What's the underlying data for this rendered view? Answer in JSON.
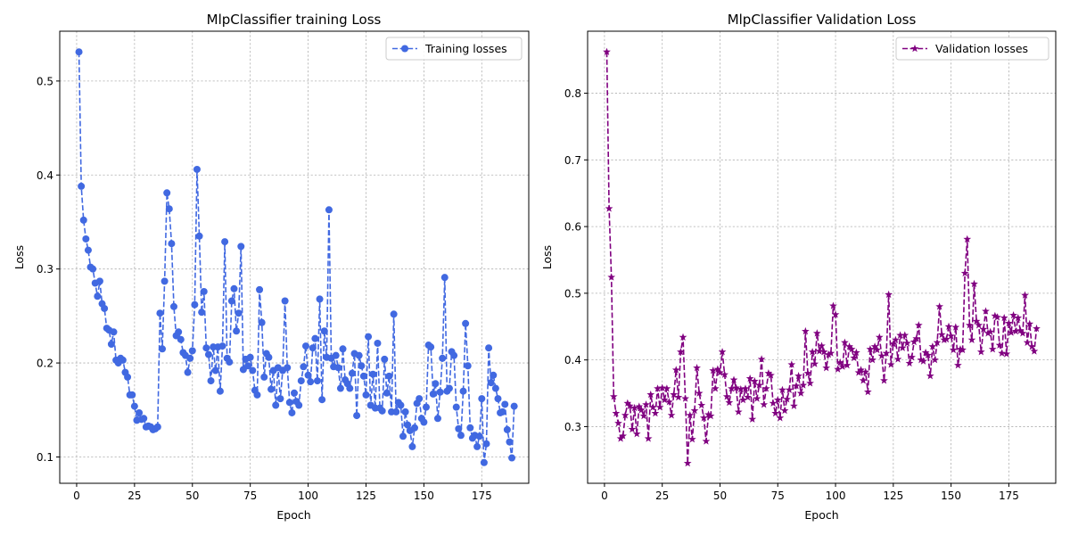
{
  "chart_data": [
    {
      "type": "line",
      "title": "MlpClassifier training Loss",
      "xlabel": "Epoch",
      "ylabel": "Loss",
      "xlim": [
        -7.3,
        195.3
      ],
      "ylim": [
        0.072,
        0.553
      ],
      "xticks": [
        0,
        25,
        50,
        75,
        100,
        125,
        150,
        175
      ],
      "yticks": [
        0.1,
        0.2,
        0.3,
        0.4,
        0.5
      ],
      "xtick_labels": [
        "0",
        "25",
        "50",
        "75",
        "100",
        "125",
        "150",
        "175"
      ],
      "ytick_labels": [
        "0.1",
        "0.2",
        "0.3",
        "0.4",
        "0.5"
      ],
      "grid": true,
      "legend_position": "top-right",
      "series": [
        {
          "name": "Training losses",
          "color": "#4169e1",
          "linestyle": "dashed",
          "marker": "circle",
          "x_start": 1,
          "values": [
            0.531,
            0.388,
            0.352,
            0.332,
            0.32,
            0.302,
            0.3,
            0.285,
            0.271,
            0.287,
            0.263,
            0.258,
            0.237,
            0.235,
            0.22,
            0.233,
            0.203,
            0.2,
            0.205,
            0.203,
            0.19,
            0.185,
            0.166,
            0.166,
            0.154,
            0.139,
            0.147,
            0.14,
            0.141,
            0.132,
            0.133,
            0.132,
            0.129,
            0.13,
            0.132,
            0.253,
            0.215,
            0.287,
            0.381,
            0.364,
            0.327,
            0.26,
            0.229,
            0.233,
            0.225,
            0.211,
            0.208,
            0.19,
            0.205,
            0.213,
            0.262,
            0.406,
            0.335,
            0.254,
            0.276,
            0.216,
            0.209,
            0.181,
            0.217,
            0.192,
            0.217,
            0.17,
            0.218,
            0.329,
            0.205,
            0.201,
            0.266,
            0.279,
            0.234,
            0.253,
            0.324,
            0.193,
            0.204,
            0.197,
            0.206,
            0.192,
            0.171,
            0.166,
            0.278,
            0.243,
            0.185,
            0.21,
            0.206,
            0.172,
            0.192,
            0.155,
            0.195,
            0.162,
            0.192,
            0.266,
            0.195,
            0.158,
            0.147,
            0.168,
            0.159,
            0.155,
            0.181,
            0.196,
            0.218,
            0.187,
            0.18,
            0.216,
            0.226,
            0.181,
            0.268,
            0.161,
            0.234,
            0.206,
            0.363,
            0.205,
            0.196,
            0.208,
            0.195,
            0.173,
            0.215,
            0.182,
            0.178,
            0.173,
            0.189,
            0.21,
            0.144,
            0.208,
            0.197,
            0.186,
            0.166,
            0.228,
            0.155,
            0.188,
            0.152,
            0.221,
            0.152,
            0.149,
            0.204,
            0.168,
            0.186,
            0.148,
            0.252,
            0.148,
            0.158,
            0.155,
            0.122,
            0.148,
            0.134,
            0.128,
            0.111,
            0.131,
            0.157,
            0.162,
            0.141,
            0.137,
            0.153,
            0.219,
            0.217,
            0.167,
            0.178,
            0.141,
            0.169,
            0.205,
            0.291,
            0.17,
            0.173,
            0.212,
            0.208,
            0.153,
            0.13,
            0.123,
            0.17,
            0.242,
            0.197,
            0.131,
            0.12,
            0.123,
            0.111,
            0.122,
            0.162,
            0.094,
            0.114,
            0.216,
            0.179,
            0.187,
            0.173,
            0.162,
            0.147,
            0.148,
            0.156,
            0.129,
            0.116,
            0.099,
            0.154
          ]
        }
      ]
    },
    {
      "type": "line",
      "title": "MlpClassifier Validation Loss",
      "xlabel": "Epoch",
      "ylabel": "Loss",
      "xlim": [
        -7.3,
        195.3
      ],
      "ylim": [
        0.215,
        0.893
      ],
      "xticks": [
        0,
        25,
        50,
        75,
        100,
        125,
        150,
        175
      ],
      "yticks": [
        0.3,
        0.4,
        0.5,
        0.6,
        0.7,
        0.8
      ],
      "xtick_labels": [
        "0",
        "25",
        "50",
        "75",
        "100",
        "125",
        "150",
        "175"
      ],
      "ytick_labels": [
        "0.3",
        "0.4",
        "0.5",
        "0.6",
        "0.7",
        "0.8"
      ],
      "grid": true,
      "legend_position": "top-right",
      "series": [
        {
          "name": "Validation losses",
          "color": "#800080",
          "linestyle": "dashed",
          "marker": "star",
          "x_start": 1,
          "values": [
            0.862,
            0.627,
            0.524,
            0.345,
            0.32,
            0.305,
            0.282,
            0.286,
            0.317,
            0.335,
            0.331,
            0.296,
            0.328,
            0.289,
            0.33,
            0.325,
            0.316,
            0.333,
            0.282,
            0.348,
            0.329,
            0.32,
            0.357,
            0.329,
            0.358,
            0.34,
            0.357,
            0.337,
            0.317,
            0.348,
            0.385,
            0.344,
            0.412,
            0.434,
            0.342,
            0.245,
            0.317,
            0.281,
            0.324,
            0.388,
            0.35,
            0.332,
            0.313,
            0.278,
            0.318,
            0.316,
            0.384,
            0.357,
            0.386,
            0.381,
            0.412,
            0.378,
            0.345,
            0.336,
            0.357,
            0.37,
            0.358,
            0.322,
            0.356,
            0.34,
            0.357,
            0.344,
            0.372,
            0.311,
            0.368,
            0.342,
            0.362,
            0.401,
            0.333,
            0.357,
            0.38,
            0.377,
            0.335,
            0.32,
            0.34,
            0.313,
            0.355,
            0.324,
            0.341,
            0.355,
            0.393,
            0.331,
            0.361,
            0.376,
            0.35,
            0.362,
            0.443,
            0.38,
            0.365,
            0.412,
            0.394,
            0.44,
            0.413,
            0.421,
            0.412,
            0.388,
            0.408,
            0.41,
            0.481,
            0.468,
            0.386,
            0.396,
            0.39,
            0.426,
            0.392,
            0.42,
            0.416,
            0.403,
            0.411,
            0.381,
            0.385,
            0.369,
            0.382,
            0.352,
            0.416,
            0.4,
            0.42,
            0.415,
            0.434,
            0.406,
            0.369,
            0.41,
            0.498,
            0.393,
            0.424,
            0.43,
            0.401,
            0.437,
            0.418,
            0.437,
            0.425,
            0.395,
            0.404,
            0.427,
            0.432,
            0.452,
            0.4,
            0.398,
            0.411,
            0.407,
            0.376,
            0.42,
            0.4,
            0.426,
            0.48,
            0.438,
            0.43,
            0.431,
            0.45,
            0.436,
            0.415,
            0.449,
            0.392,
            0.416,
            0.415,
            0.53,
            0.581,
            0.452,
            0.43,
            0.514,
            0.458,
            0.452,
            0.412,
            0.446,
            0.473,
            0.44,
            0.442,
            0.416,
            0.466,
            0.464,
            0.422,
            0.41,
            0.463,
            0.409,
            0.455,
            0.441,
            0.467,
            0.443,
            0.463,
            0.444,
            0.44,
            0.497,
            0.426,
            0.454,
            0.42,
            0.413,
            0.447
          ]
        }
      ]
    }
  ]
}
